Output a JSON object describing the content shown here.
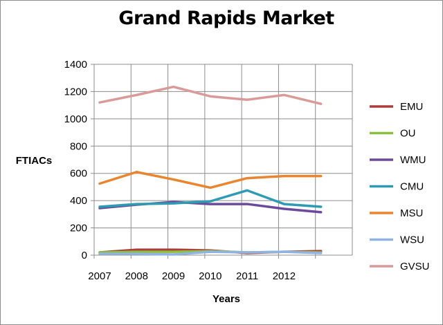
{
  "chart_data": {
    "type": "line",
    "title": "Grand Rapids Market",
    "xlabel": "Years",
    "ylabel": "FTIACs",
    "ylim": [
      0,
      1400
    ],
    "yticks": [
      0,
      200,
      400,
      600,
      800,
      1000,
      1200,
      1400
    ],
    "categories": [
      "2007",
      "2008",
      "2009",
      "2010",
      "2011",
      "2012",
      ""
    ],
    "grid": true,
    "legend_position": "right",
    "series": [
      {
        "name": "EMU",
        "color": "#b03a3a",
        "values": [
          20,
          40,
          40,
          35,
          15,
          25,
          30
        ]
      },
      {
        "name": "OU",
        "color": "#8cbf3f",
        "values": [
          20,
          25,
          25,
          30,
          20,
          25,
          20
        ]
      },
      {
        "name": "WMU",
        "color": "#6b4a9b",
        "values": [
          345,
          370,
          390,
          375,
          375,
          340,
          315
        ]
      },
      {
        "name": "CMU",
        "color": "#2f9bb3",
        "values": [
          355,
          375,
          380,
          395,
          475,
          375,
          355
        ]
      },
      {
        "name": "MSU",
        "color": "#e8852e",
        "values": [
          525,
          610,
          555,
          495,
          565,
          580,
          580
        ]
      },
      {
        "name": "WSU",
        "color": "#8fb3e2",
        "values": [
          10,
          10,
          5,
          25,
          20,
          25,
          15
        ]
      },
      {
        "name": "GVSU",
        "color": "#db9a9a",
        "values": [
          1120,
          1175,
          1235,
          1165,
          1140,
          1175,
          1110
        ]
      }
    ]
  }
}
